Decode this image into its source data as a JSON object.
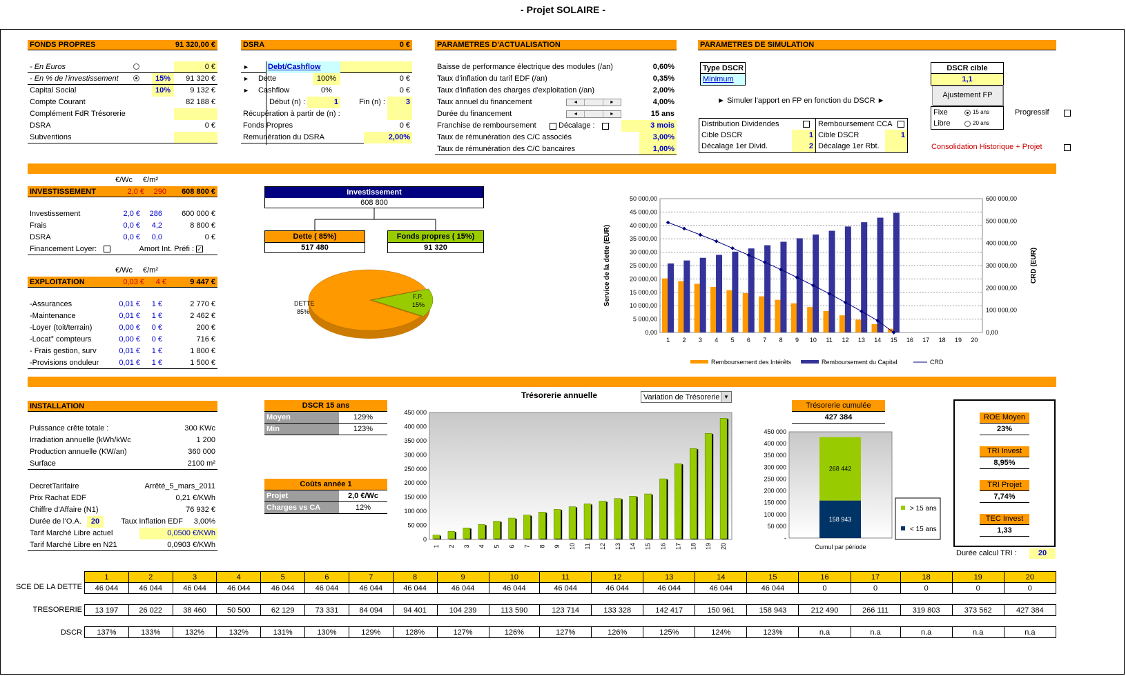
{
  "page_title": "- Projet SOLAIRE -",
  "fonds_propres": {
    "title": "FONDS PROPRES",
    "total": "91 320,00 €",
    "rows": [
      {
        "label": "- En Euros",
        "pct": "",
        "value": "0 €"
      },
      {
        "label": "- En % de l'investissement",
        "pct": "15%",
        "value": "91 320 €"
      },
      {
        "label": "Capital Social",
        "pct": "10%",
        "value": "9 132 €"
      },
      {
        "label": "Compte Courant",
        "pct": "",
        "value": "82 188 €"
      },
      {
        "label": "Complément FdR Trésorerie",
        "pct": "",
        "value": ""
      },
      {
        "label": "DSRA",
        "pct": "",
        "value": "0 €"
      },
      {
        "label": "Subventions",
        "pct": "",
        "value": ""
      }
    ]
  },
  "dsra": {
    "title": "DSRA",
    "total": "0 €",
    "link": "Debt/Cashflow",
    "dette_label": "Dette",
    "dette_pct": "100%",
    "dette_val": "0 €",
    "cash_label": "Cashflow",
    "cash_pct": "0%",
    "cash_val": "0 €",
    "debut_label": "Début (n) :",
    "debut_val": "1",
    "fin_label": "Fin (n) :",
    "fin_val": "3",
    "recup_label": "Récupération à partir de (n) :",
    "fp_label": "Fonds Propres",
    "fp_val": "0 €",
    "rem_label": "Remunération du  DSRA",
    "rem_val": "2,00%"
  },
  "actualisation": {
    "title": "PARAMETRES D'ACTUALISATION",
    "rows": [
      {
        "label": "Baisse de performance électrique des modules (/an)",
        "value": "0,60%"
      },
      {
        "label": "Taux d'inflation du tarif EDF (/an)",
        "value": "0,35%"
      },
      {
        "label": "Taux d'inflation des charges d'exploitation (/an)",
        "value": "2,00%"
      },
      {
        "label": "Taux annuel du financement",
        "value": "4,00%"
      },
      {
        "label": "Durée du financement",
        "value": "15 ans"
      },
      {
        "label": "Franchise de remboursement",
        "value": "3 mois",
        "extra": "Décalage :"
      },
      {
        "label": "Taux de rémunération des C/C associés",
        "value": "3,00%"
      },
      {
        "label": "Taux de rémunération des C/C bancaires",
        "value": "1,00%"
      }
    ]
  },
  "simulation": {
    "title": "PARAMETRES DE SIMULATION",
    "type_dscr_label": "Type DSCR",
    "type_dscr_value": "Minimum",
    "simuler_text": "► Simuler l'apport en FP en fonction du DSCR   ►",
    "dscr_cible_label": "DSCR cible",
    "dscr_cible_value": "1,1",
    "ajust_button": "Ajustement FP",
    "fixe_label": "Fixe",
    "fixe_sub": "15 ans",
    "libre_label": "Libre",
    "libre_sub": "20 ans",
    "progressif_label": "Progressif",
    "dist_label": "Distribution Dividendes",
    "rembourst_label": "Remboursement CCA",
    "cible1_label": "Cible DSCR",
    "cible1_val": "1",
    "cible2_label": "Cible DSCR",
    "cible2_val": "1",
    "dec1_label": "Décalage 1er Divid.",
    "dec1_val": "2",
    "dec2_label": "Décalage 1er Rbt.",
    "dec2_val": "",
    "consolidation_label": "Consolidation Historique + Projet"
  },
  "investissement": {
    "unit1": "€/Wc",
    "unit2": "€/m²",
    "title": "INVESTISSEMENT",
    "t_wc": "2,0 €",
    "t_m2": "290",
    "total": "608 800 €",
    "rows": [
      {
        "label": "Investissement",
        "wc": "2,0 €",
        "m2": "286",
        "val": "600 000 €"
      },
      {
        "label": "Frais",
        "wc": "0,0 €",
        "m2": "4,2",
        "val": "8 800 €"
      },
      {
        "label": "DSRA",
        "wc": "0,0 €",
        "m2": "0,0",
        "val": "0 €"
      }
    ],
    "loyer_label": "Financement Loyer:",
    "amort_label": "Amort Int. Préfi :"
  },
  "exploitation": {
    "unit1": "€/Wc",
    "unit2": "€/m²",
    "title": "EXPLOITATION",
    "t_wc": "0,03 €",
    "t_m2": "4 €",
    "total": "9 447 €",
    "rows": [
      {
        "label": "-Assurances",
        "wc": "0,01 €",
        "m2": "1 €",
        "val": "2 770 €"
      },
      {
        "label": "-Maintenance",
        "wc": "0,01 €",
        "m2": "1 €",
        "val": "2 462 €"
      },
      {
        "label": "-Loyer (toit/terrain)",
        "wc": "0,00 €",
        "m2": "0 €",
        "val": "200 €"
      },
      {
        "label": "-Locat° compteurs",
        "wc": "0,00 €",
        "m2": "0 €",
        "val": "716 €"
      },
      {
        "label": "- Frais gestion, surv",
        "wc": "0,01 €",
        "m2": "1 €",
        "val": "1 800 €"
      },
      {
        "label": "-Provisions onduleur",
        "wc": "0,01 €",
        "m2": "1 €",
        "val": "1 500 €"
      }
    ]
  },
  "invest_tree": {
    "top_label": "Investissement",
    "top_value": "608 800",
    "left_label": "Dette ( 85%)",
    "left_value": "517 480",
    "right_label": "Fonds propres ( 15%)",
    "right_value": "91 320"
  },
  "pie": {
    "dette_label": "DETTE",
    "dette_pct": "85%",
    "fp_label": "F.P.",
    "fp_pct": "15%",
    "dette_share": 85,
    "fp_share": 15
  },
  "installation": {
    "title": "INSTALLATION",
    "rows": [
      {
        "label": "Puissance crête totale :",
        "value": "300 KWc"
      },
      {
        "label": "Irradiation annuelle (kWh/kWc)",
        "value": "1 200"
      },
      {
        "label": "Production annuelle (KW/an)",
        "value": "360 000"
      },
      {
        "label": "Surface",
        "value": "2100 m²"
      }
    ],
    "rows2": [
      {
        "label": "DecretTarifaire",
        "value": "Arrêté_5_mars_2011"
      },
      {
        "label": "Prix Rachat EDF",
        "value": "0,21 €/KWh"
      },
      {
        "label": "Chiffre d'Affaire (N1)",
        "value": "76 932 €"
      }
    ],
    "oa_label": "Durée de l'O.A.",
    "oa_val": "20",
    "infl_label": "Taux Inflation EDF",
    "infl_val": "3,00%",
    "tml_label": "Tarif Marché Libre actuel",
    "tml_val": "0,0500 €/KWh",
    "tml21_label": "Tarif Marché Libre en N21",
    "tml21_val": "0,0903 €/KWh"
  },
  "dscr_box": {
    "title": "DSCR 15 ans",
    "r1_label": "Moyen",
    "r1_val": "129%",
    "r2_label": "Min",
    "r2_val": "123%"
  },
  "couts_box": {
    "title": "Coûts année 1",
    "r1_label": "Projet",
    "r1_val": "2,0 €/Wc",
    "r2_label": "Charges vs CA",
    "r2_val": "12%"
  },
  "treso_cumulee": {
    "title": "Trésorerie cumulée",
    "value": "427 384",
    "legend1": "> 15 ans",
    "legend2": "< 15 ans",
    "xlabel": "Cumul par période"
  },
  "kpis": [
    {
      "label": "ROE Moyen",
      "value": "23%"
    },
    {
      "label": "TRI Invest",
      "value": "8,95%"
    },
    {
      "label": "TRI Projet",
      "value": "7,74%"
    },
    {
      "label": "TEC Invest",
      "value": "1,33"
    }
  ],
  "duree_tri_label": "Durée calcul TRI :",
  "duree_tri_val": "20",
  "bottom_table": {
    "years": [
      "1",
      "2",
      "3",
      "4",
      "5",
      "6",
      "7",
      "8",
      "9",
      "10",
      "11",
      "12",
      "13",
      "14",
      "15",
      "16",
      "17",
      "18",
      "19",
      "20"
    ],
    "sce_label": "SCE DE LA DETTE",
    "sce": [
      "46 044",
      "46 044",
      "46 044",
      "46 044",
      "46 044",
      "46 044",
      "46 044",
      "46 044",
      "46 044",
      "46 044",
      "46 044",
      "46 044",
      "46 044",
      "46 044",
      "46 044",
      "0",
      "0",
      "0",
      "0",
      "0"
    ],
    "treso_label": "TRESORERIE",
    "treso": [
      "13 197",
      "26 022",
      "38 460",
      "50 500",
      "62 129",
      "73 331",
      "84 094",
      "94 401",
      "104 239",
      "113 590",
      "123 714",
      "133 328",
      "142 417",
      "150 961",
      "158 943",
      "212 490",
      "266 111",
      "319 803",
      "373 562",
      "427 384"
    ],
    "dscr_label": "DSCR",
    "dscr": [
      "137%",
      "133%",
      "132%",
      "132%",
      "131%",
      "130%",
      "129%",
      "128%",
      "127%",
      "126%",
      "127%",
      "126%",
      "125%",
      "124%",
      "123%",
      "n.a",
      "n.a",
      "n.a",
      "n.a",
      "n.a"
    ]
  },
  "chart_data": [
    {
      "type": "bar",
      "ylabel": "Service de la dette (EUR)",
      "y2label": "CRD (EUR)",
      "categories": [
        "1",
        "2",
        "3",
        "4",
        "5",
        "6",
        "7",
        "8",
        "9",
        "10",
        "11",
        "12",
        "13",
        "14",
        "15",
        "16",
        "17",
        "18",
        "19",
        "20"
      ],
      "ylim": [
        0,
        50000
      ],
      "y2lim": [
        0,
        600000
      ],
      "yticks": [
        "0,00",
        "5 000,00",
        "10 000,00",
        "15 000,00",
        "20 000,00",
        "25 000,00",
        "30 000,00",
        "35 000,00",
        "40 000,00",
        "45 000,00",
        "50 000,00"
      ],
      "y2ticks": [
        "0,00",
        "100 000,00",
        "200 000,00",
        "300 000,00",
        "400 000,00",
        "500 000,00",
        "600 000,00"
      ],
      "series": [
        {
          "name": "Remboursement des Intérêts",
          "color": "#ff9900",
          "values": [
            20200,
            19200,
            18200,
            17000,
            15800,
            14700,
            13500,
            12200,
            10900,
            9500,
            8000,
            6400,
            4800,
            3100,
            1400,
            0,
            0,
            0,
            0,
            0
          ]
        },
        {
          "name": "Remboursement du Capital",
          "color": "#333399",
          "values": [
            25800,
            26900,
            27900,
            29000,
            30200,
            31400,
            32600,
            33900,
            35200,
            36600,
            38000,
            39600,
            41200,
            42900,
            44700,
            0,
            0,
            0,
            0,
            0
          ]
        },
        {
          "name": "CRD",
          "color": "#000080",
          "axis": "y2",
          "values": [
            493000,
            466000,
            438000,
            409000,
            378000,
            347000,
            315000,
            282000,
            247000,
            211000,
            174000,
            135000,
            95000,
            53000,
            0,
            0,
            0,
            0,
            0,
            0
          ]
        }
      ],
      "legend": "bottom",
      "grid": true
    },
    {
      "type": "bar",
      "title": "Trésorerie annuelle",
      "dropdown": "Variation de Trésorerie",
      "categories": [
        "1",
        "2",
        "3",
        "4",
        "5",
        "6",
        "7",
        "8",
        "9",
        "10",
        "11",
        "12",
        "13",
        "14",
        "15",
        "16",
        "17",
        "18",
        "19",
        "20"
      ],
      "ylim": [
        0,
        450000
      ],
      "yticks": [
        "0",
        "50 000",
        "100 000",
        "150 000",
        "200 000",
        "250 000",
        "300 000",
        "350 000",
        "400 000",
        "450 000"
      ],
      "series": [
        {
          "name": "",
          "color": "#99cc00",
          "values": [
            13197,
            26022,
            38460,
            50500,
            62129,
            73331,
            84094,
            94401,
            104239,
            113590,
            123714,
            133328,
            142417,
            150961,
            158943,
            212490,
            266111,
            319803,
            373562,
            427384
          ]
        }
      ]
    },
    {
      "type": "bar",
      "title": "Trésorerie cumulée",
      "stacked": true,
      "ylim": [
        0,
        450000
      ],
      "yticks": [
        "-",
        "50 000",
        "100 000",
        "150 000",
        "200 000",
        "250 000",
        "300 000",
        "350 000",
        "400 000",
        "450 000"
      ],
      "categories": [
        "Cumul par période"
      ],
      "series": [
        {
          "name": "< 15 ans",
          "color": "#003366",
          "values": [
            158943
          ],
          "label": "158 943"
        },
        {
          "name": "> 15 ans",
          "color": "#99cc00",
          "values": [
            268442
          ],
          "label": "268 442"
        }
      ]
    }
  ]
}
